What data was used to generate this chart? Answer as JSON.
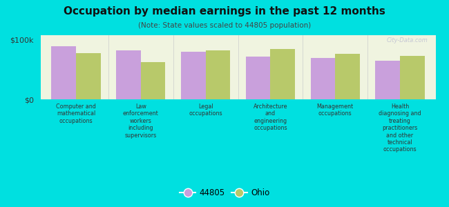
{
  "title": "Occupation by median earnings in the past 12 months",
  "subtitle": "(Note: State values scaled to 44805 population)",
  "background_color": "#00e0e0",
  "plot_bg_color": "#f0f4e0",
  "categories": [
    "Computer and\nmathematical\noccupations",
    "Law\nenforcement\nworkers\nincluding\nsupervisors",
    "Legal\noccupations",
    "Architecture\nand\nengineering\noccupations",
    "Management\noccupations",
    "Health\ndiagnosing and\ntreating\npractitioners\nand other\ntechnical\noccupations"
  ],
  "values_44805": [
    90000,
    82000,
    80000,
    72000,
    70000,
    65000
  ],
  "values_ohio": [
    78000,
    63000,
    82000,
    85000,
    77000,
    73000
  ],
  "color_44805": "#c9a0dc",
  "color_ohio": "#b8c96a",
  "ylim": [
    0,
    108000
  ],
  "ytick_labels": [
    "$0",
    "$100k"
  ],
  "ytick_vals": [
    0,
    100000
  ],
  "legend_44805": "44805",
  "legend_ohio": "Ohio",
  "watermark": "City-Data.com",
  "bar_width": 0.38
}
